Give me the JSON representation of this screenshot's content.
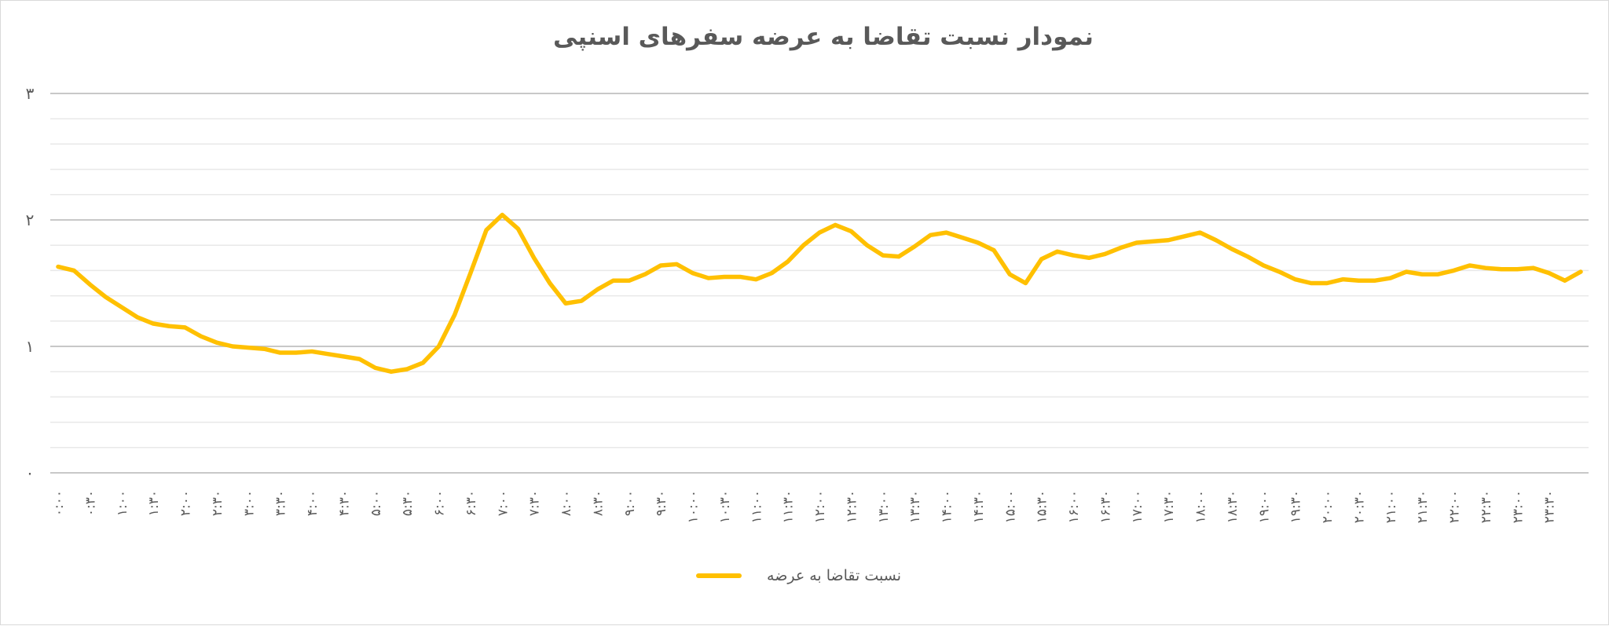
{
  "chart_data": {
    "type": "line",
    "title": "نمودار نسبت تقاضا به عرضه سفرهای اسنپی",
    "xlabel": "",
    "ylabel": "",
    "ylim": [
      0,
      3
    ],
    "yticks": [
      0,
      1,
      2,
      3
    ],
    "ytick_labels": [
      "۰",
      "۱",
      "۲",
      "۳"
    ],
    "grid": true,
    "minor_grid_step": 0.2,
    "legend_position": "bottom",
    "x_tick_labels": [
      "۰:۰۰",
      "۰:۳۰",
      "۱:۰۰",
      "۱:۳۰",
      "۲:۰۰",
      "۲:۳۰",
      "۳:۰۰",
      "۳:۳۰",
      "۴:۰۰",
      "۴:۳۰",
      "۵:۰۰",
      "۵:۳۰",
      "۶:۰۰",
      "۶:۳۰",
      "۷:۰۰",
      "۷:۳۰",
      "۸:۰۰",
      "۸:۳۰",
      "۹:۰۰",
      "۹:۳۰",
      "۱۰:۰۰",
      "۱۰:۳۰",
      "۱۱:۰۰",
      "۱۱:۳۰",
      "۱۲:۰۰",
      "۱۲:۳۰",
      "۱۳:۰۰",
      "۱۳:۳۰",
      "۱۴:۰۰",
      "۱۴:۳۰",
      "۱۵:۰۰",
      "۱۵:۳۰",
      "۱۶:۰۰",
      "۱۶:۳۰",
      "۱۷:۰۰",
      "۱۷:۳۰",
      "۱۸:۰۰",
      "۱۸:۳۰",
      "۱۹:۰۰",
      "۱۹:۳۰",
      "۲۰:۰۰",
      "۲۰:۳۰",
      "۲۱:۰۰",
      "۲۱:۳۰",
      "۲۲:۰۰",
      "۲۲:۳۰",
      "۲۳:۰۰",
      "۲۳:۳۰"
    ],
    "series": [
      {
        "name": "نسبت تقاضا به عرضه",
        "color": "#ffc000",
        "values": [
          1.63,
          1.6,
          1.49,
          1.39,
          1.31,
          1.23,
          1.18,
          1.16,
          1.15,
          1.08,
          1.03,
          1.0,
          0.99,
          0.98,
          0.95,
          0.95,
          0.96,
          0.94,
          0.92,
          0.9,
          0.83,
          0.8,
          0.82,
          0.87,
          1.0,
          1.25,
          1.58,
          1.92,
          2.04,
          1.93,
          1.7,
          1.5,
          1.34,
          1.36,
          1.45,
          1.52,
          1.52,
          1.57,
          1.64,
          1.65,
          1.58,
          1.54,
          1.55,
          1.55,
          1.53,
          1.58,
          1.67,
          1.8,
          1.9,
          1.96,
          1.91,
          1.8,
          1.72,
          1.71,
          1.79,
          1.88,
          1.9,
          1.86,
          1.82,
          1.76,
          1.57,
          1.5,
          1.69,
          1.75,
          1.72,
          1.7,
          1.73,
          1.78,
          1.82,
          1.83,
          1.84,
          1.87,
          1.9,
          1.84,
          1.77,
          1.71,
          1.64,
          1.59,
          1.53,
          1.5,
          1.5,
          1.53,
          1.52,
          1.52,
          1.54,
          1.59,
          1.57,
          1.57,
          1.6,
          1.64,
          1.62,
          1.61,
          1.61,
          1.62,
          1.58,
          1.52,
          1.59
        ]
      }
    ]
  }
}
